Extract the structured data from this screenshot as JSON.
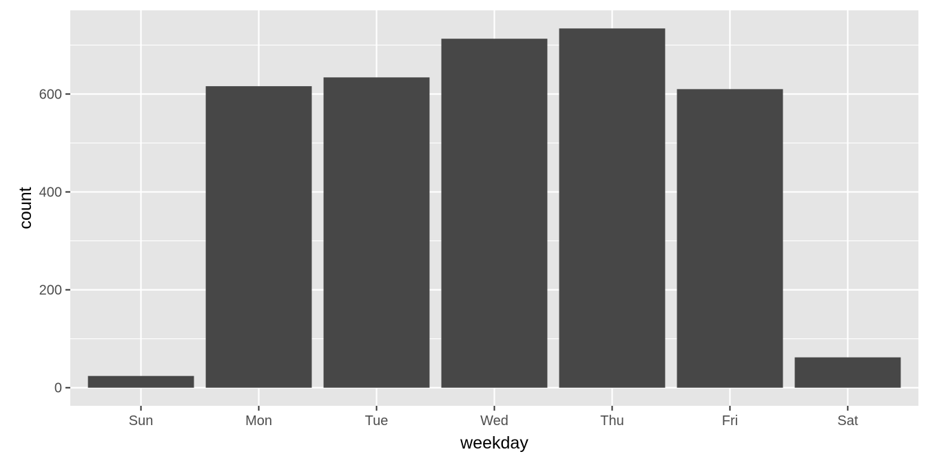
{
  "chart_data": {
    "type": "bar",
    "categories": [
      "Sun",
      "Mon",
      "Tue",
      "Wed",
      "Thu",
      "Fri",
      "Sat"
    ],
    "values": [
      24,
      616,
      634,
      713,
      734,
      610,
      62
    ],
    "xlabel": "weekday",
    "ylabel": "count",
    "ylim": [
      -37,
      771
    ],
    "y_ticks": [
      0,
      200,
      400,
      600
    ],
    "grid": true,
    "bar_color": "#474747",
    "panel_background": "#e5e5e5",
    "grid_color": "#ffffff"
  }
}
